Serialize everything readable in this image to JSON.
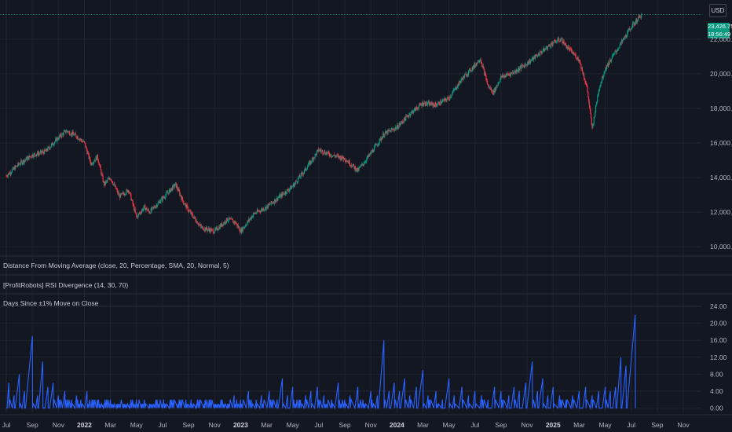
{
  "currency": "USD",
  "last_price": "23,426.75",
  "countdown": "18:56:49",
  "colors": {
    "up": "#089981",
    "down": "#f23645",
    "indicator": "#2962ff",
    "price_tag": "#089981"
  },
  "indicators": [
    {
      "label": "Distance From Moving Average (close, 20, Percentage, SMA, 20, Normal, 5)"
    },
    {
      "label": "[ProfitRobots] RSI Divergence (14, 30, 70)"
    },
    {
      "label": "Days Since ±1% Move on Close"
    }
  ],
  "chart_data": [
    {
      "type": "candlestick",
      "y_axis_labels": [
        "22,000.00",
        "20,000.00",
        "18,000.00",
        "16,000.00",
        "14,000.00",
        "12,000.00",
        "10,000.00"
      ],
      "ylim": [
        9600,
        23900
      ],
      "x_axis_labels": [
        "Jul",
        "Sep",
        "Nov",
        "2022",
        "Mar",
        "May",
        "Jul",
        "Sep",
        "Nov",
        "2023",
        "Mar",
        "May",
        "Jul",
        "Sep",
        "Nov",
        "2024",
        "Mar",
        "May",
        "Jul",
        "Sep",
        "Nov",
        "2025",
        "Mar",
        "May",
        "Jul",
        "Sep",
        "Nov"
      ],
      "x_month_index": [
        0,
        2,
        4,
        6,
        8,
        10,
        12,
        14,
        16,
        18,
        20,
        22,
        24,
        26,
        28,
        30,
        32,
        34,
        36,
        38,
        40,
        42,
        44,
        46,
        48,
        50,
        52
      ],
      "x_month_span": [
        0,
        52.6
      ],
      "trend": [
        [
          0,
          14100
        ],
        [
          1,
          14800
        ],
        [
          2,
          15300
        ],
        [
          3,
          15500
        ],
        [
          4,
          16300
        ],
        [
          4.6,
          16700
        ],
        [
          5.4,
          16400
        ],
        [
          6,
          16000
        ],
        [
          6.5,
          14800
        ],
        [
          7,
          15200
        ],
        [
          7.5,
          13600
        ],
        [
          8,
          14000
        ],
        [
          8.7,
          12900
        ],
        [
          9.4,
          13300
        ],
        [
          10,
          11700
        ],
        [
          10.6,
          12300
        ],
        [
          11,
          12000
        ],
        [
          12,
          12800
        ],
        [
          13,
          13600
        ],
        [
          13.6,
          12600
        ],
        [
          14,
          12100
        ],
        [
          15,
          11100
        ],
        [
          16,
          10900
        ],
        [
          17,
          11600
        ],
        [
          17.6,
          11400
        ],
        [
          18,
          10900
        ],
        [
          19,
          11900
        ],
        [
          20,
          12300
        ],
        [
          21,
          12900
        ],
        [
          22,
          13500
        ],
        [
          23,
          14500
        ],
        [
          24,
          15600
        ],
        [
          25,
          15300
        ],
        [
          26,
          15100
        ],
        [
          27,
          14400
        ],
        [
          28,
          15400
        ],
        [
          29,
          16500
        ],
        [
          30,
          16900
        ],
        [
          31,
          17700
        ],
        [
          32,
          18300
        ],
        [
          33,
          18200
        ],
        [
          34,
          18600
        ],
        [
          35,
          19700
        ],
        [
          36,
          20500
        ],
        [
          36.4,
          20900
        ],
        [
          37,
          19300
        ],
        [
          37.4,
          18900
        ],
        [
          38,
          19800
        ],
        [
          39,
          20100
        ],
        [
          40,
          20600
        ],
        [
          41,
          21200
        ],
        [
          42,
          21800
        ],
        [
          42.6,
          22000
        ],
        [
          43,
          21600
        ],
        [
          44,
          20800
        ],
        [
          44.6,
          19200
        ],
        [
          45,
          16800
        ],
        [
          45.5,
          19100
        ],
        [
          46,
          20300
        ],
        [
          47,
          21500
        ],
        [
          48,
          22700
        ],
        [
          48.8,
          23426
        ]
      ]
    },
    {
      "type": "line",
      "name": "Days Since ±1% Move on Close",
      "y_axis_labels": [
        "24.00",
        "20.00",
        "16.00",
        "12.00",
        "8.00",
        "4.00",
        "0.00"
      ],
      "ylim": [
        -1,
        24
      ],
      "spikes": [
        [
          0.2,
          6
        ],
        [
          0.6,
          3
        ],
        [
          1.0,
          8
        ],
        [
          1.4,
          4
        ],
        [
          2.0,
          17
        ],
        [
          2.4,
          3
        ],
        [
          2.8,
          11
        ],
        [
          3.2,
          5
        ],
        [
          3.6,
          6
        ],
        [
          4.0,
          3
        ],
        [
          4.5,
          4
        ],
        [
          5.0,
          2
        ],
        [
          5.4,
          3
        ],
        [
          6.2,
          4
        ],
        [
          6.6,
          2
        ],
        [
          7.0,
          2
        ],
        [
          7.5,
          1
        ],
        [
          8.0,
          2
        ],
        [
          8.5,
          1
        ],
        [
          9.0,
          1
        ],
        [
          9.5,
          1
        ],
        [
          10.0,
          2
        ],
        [
          10.4,
          1
        ],
        [
          11.0,
          1
        ],
        [
          11.5,
          2
        ],
        [
          12.0,
          1
        ],
        [
          12.6,
          2
        ],
        [
          13.2,
          1
        ],
        [
          13.8,
          2
        ],
        [
          14.2,
          2
        ],
        [
          14.6,
          1
        ],
        [
          15.2,
          1
        ],
        [
          15.6,
          2
        ],
        [
          16.0,
          1
        ],
        [
          16.5,
          2
        ],
        [
          17.0,
          1
        ],
        [
          17.5,
          3
        ],
        [
          18.0,
          2
        ],
        [
          18.6,
          4
        ],
        [
          19.2,
          2
        ],
        [
          19.6,
          3
        ],
        [
          20.2,
          4
        ],
        [
          20.8,
          2
        ],
        [
          21.2,
          7
        ],
        [
          21.6,
          3
        ],
        [
          22.0,
          5
        ],
        [
          22.5,
          2
        ],
        [
          23.0,
          3
        ],
        [
          23.4,
          4
        ],
        [
          23.9,
          5
        ],
        [
          24.4,
          3
        ],
        [
          25.0,
          2
        ],
        [
          25.5,
          6
        ],
        [
          26.0,
          2
        ],
        [
          26.4,
          3
        ],
        [
          27.0,
          5
        ],
        [
          27.4,
          2
        ],
        [
          28.0,
          4
        ],
        [
          28.5,
          3
        ],
        [
          29.0,
          16
        ],
        [
          29.4,
          4
        ],
        [
          29.8,
          6
        ],
        [
          30.2,
          4
        ],
        [
          30.6,
          7
        ],
        [
          31.0,
          3
        ],
        [
          31.5,
          5
        ],
        [
          32.0,
          9
        ],
        [
          32.4,
          3
        ],
        [
          33.0,
          4
        ],
        [
          33.5,
          2
        ],
        [
          34.0,
          7
        ],
        [
          34.4,
          3
        ],
        [
          35.0,
          5
        ],
        [
          35.5,
          3
        ],
        [
          36.0,
          4
        ],
        [
          36.5,
          3
        ],
        [
          37.0,
          2
        ],
        [
          37.5,
          5
        ],
        [
          38.0,
          4
        ],
        [
          38.6,
          3
        ],
        [
          39.0,
          5
        ],
        [
          39.4,
          4
        ],
        [
          39.9,
          6
        ],
        [
          40.4,
          11
        ],
        [
          40.8,
          4
        ],
        [
          41.2,
          7
        ],
        [
          41.6,
          3
        ],
        [
          42.0,
          5
        ],
        [
          42.5,
          3
        ],
        [
          43.0,
          2
        ],
        [
          43.5,
          3
        ],
        [
          44.0,
          4
        ],
        [
          44.5,
          5
        ],
        [
          45.0,
          3
        ],
        [
          45.5,
          4
        ],
        [
          46.0,
          5
        ],
        [
          46.4,
          4
        ],
        [
          46.8,
          5
        ],
        [
          47.2,
          12
        ],
        [
          47.6,
          10
        ],
        [
          48.3,
          22
        ]
      ]
    }
  ]
}
